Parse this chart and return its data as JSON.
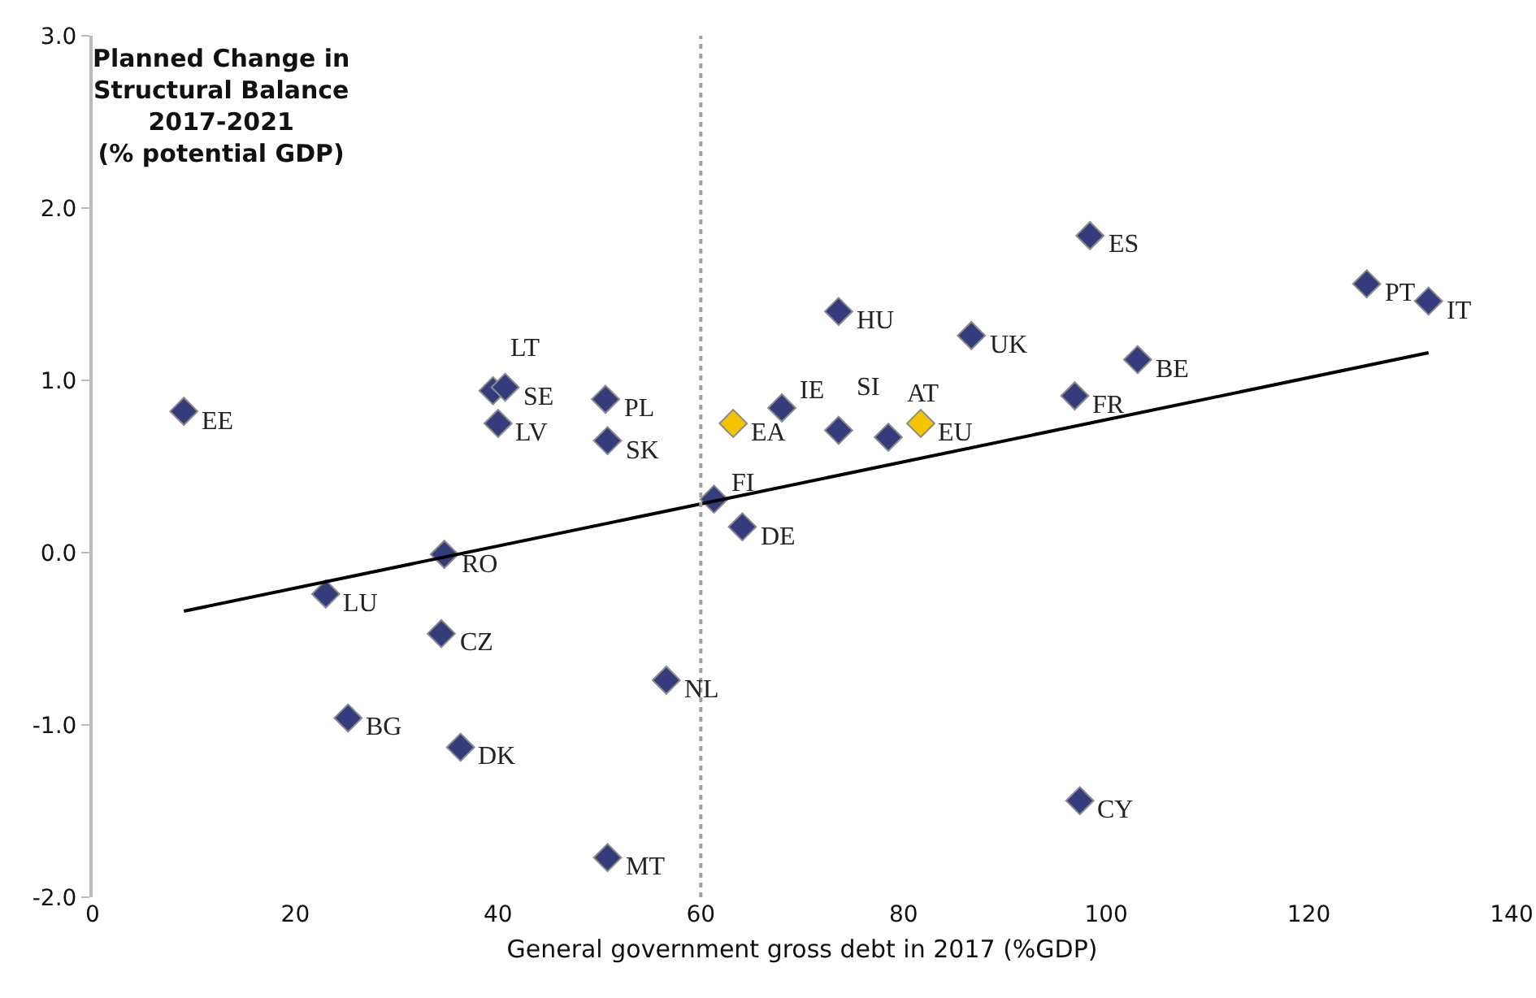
{
  "chart_data": {
    "type": "scatter",
    "title": "Planned Change in\nStructural Balance\n2017-2021\n(% potential GDP)",
    "xlabel": "General government gross debt in 2017 (%GDP)",
    "xlim": [
      0,
      140
    ],
    "xticks": [
      0,
      20,
      40,
      60,
      80,
      100,
      120,
      140
    ],
    "ylim": [
      -2,
      3
    ],
    "yticks": [
      {
        "value": -2,
        "label": "-2.0"
      },
      {
        "value": -1,
        "label": "-1.0"
      },
      {
        "value": 0,
        "label": "0.0"
      },
      {
        "value": 1,
        "label": "1.0"
      },
      {
        "value": 2,
        "label": "2.0"
      },
      {
        "value": 3,
        "label": "3.0"
      }
    ],
    "grid": false,
    "marker": "diamond",
    "series": [
      {
        "type": "scatter",
        "color": "#343c7c",
        "x": [
          9,
          23,
          34.7,
          34.4,
          25.2,
          36.3,
          39.5,
          40.7,
          40,
          50.6,
          50.8,
          50.8,
          56.6,
          61.3,
          64.1,
          68,
          73.6,
          73.6,
          78.5,
          86.7,
          96.9,
          103.1,
          98.4,
          97.4,
          125.7,
          131.8
        ],
        "values": [
          0.82,
          -0.24,
          -0.01,
          -0.47,
          -0.96,
          -1.13,
          0.94,
          0.96,
          0.75,
          0.89,
          0.65,
          -1.77,
          -0.74,
          0.31,
          0.15,
          0.84,
          0.71,
          1.4,
          0.67,
          1.26,
          0.91,
          1.12,
          1.84,
          -1.44,
          1.56,
          1.46
        ]
      },
      {
        "type": "scatter",
        "color": "#f5c400",
        "x": [
          63.2,
          81.7
        ],
        "values": [
          0.75,
          0.75
        ]
      },
      {
        "type": "line",
        "color": "#000000",
        "x": [
          9,
          131.8
        ],
        "values": [
          -0.34,
          1.16
        ],
        "line_style": "solid",
        "marker": "none"
      }
    ],
    "ref_lines": [
      {
        "axis": "x",
        "value": 60,
        "color": "#a0a0a0",
        "line_style": "dotted"
      }
    ],
    "annotations": [
      {
        "text": "EE",
        "x": 9,
        "y": 0.82
      },
      {
        "text": "LU",
        "x": 23,
        "y": -0.24
      },
      {
        "text": "RO",
        "x": 34.7,
        "y": -0.01
      },
      {
        "text": "CZ",
        "x": 34.4,
        "y": -0.47
      },
      {
        "text": "BG",
        "x": 25.2,
        "y": -0.96
      },
      {
        "text": "DK",
        "x": 36.3,
        "y": -1.13
      },
      {
        "text": "LT",
        "x": 39.5,
        "y": 0.94
      },
      {
        "text": "SE",
        "x": 40.7,
        "y": 0.96
      },
      {
        "text": "LV",
        "x": 40,
        "y": 0.75
      },
      {
        "text": "PL",
        "x": 50.6,
        "y": 0.89
      },
      {
        "text": "SK",
        "x": 50.8,
        "y": 0.65
      },
      {
        "text": "MT",
        "x": 50.8,
        "y": -1.77
      },
      {
        "text": "NL",
        "x": 56.6,
        "y": -0.74
      },
      {
        "text": "FI",
        "x": 61.3,
        "y": 0.31
      },
      {
        "text": "DE",
        "x": 64.1,
        "y": 0.15
      },
      {
        "text": "IE",
        "x": 68,
        "y": 0.84
      },
      {
        "text": "SI",
        "x": 73.6,
        "y": 0.71
      },
      {
        "text": "HU",
        "x": 73.6,
        "y": 1.4
      },
      {
        "text": "AT",
        "x": 78.5,
        "y": 0.67
      },
      {
        "text": "UK",
        "x": 86.7,
        "y": 1.26
      },
      {
        "text": "FR",
        "x": 96.9,
        "y": 0.91
      },
      {
        "text": "BE",
        "x": 103.1,
        "y": 1.12
      },
      {
        "text": "ES",
        "x": 98.4,
        "y": 1.84
      },
      {
        "text": "CY",
        "x": 97.4,
        "y": -1.44
      },
      {
        "text": "PT",
        "x": 125.7,
        "y": 1.56
      },
      {
        "text": "IT",
        "x": 131.8,
        "y": 1.46
      },
      {
        "text": "EA",
        "x": 63.2,
        "y": 0.75
      },
      {
        "text": "EU",
        "x": 81.7,
        "y": 0.75
      }
    ]
  }
}
